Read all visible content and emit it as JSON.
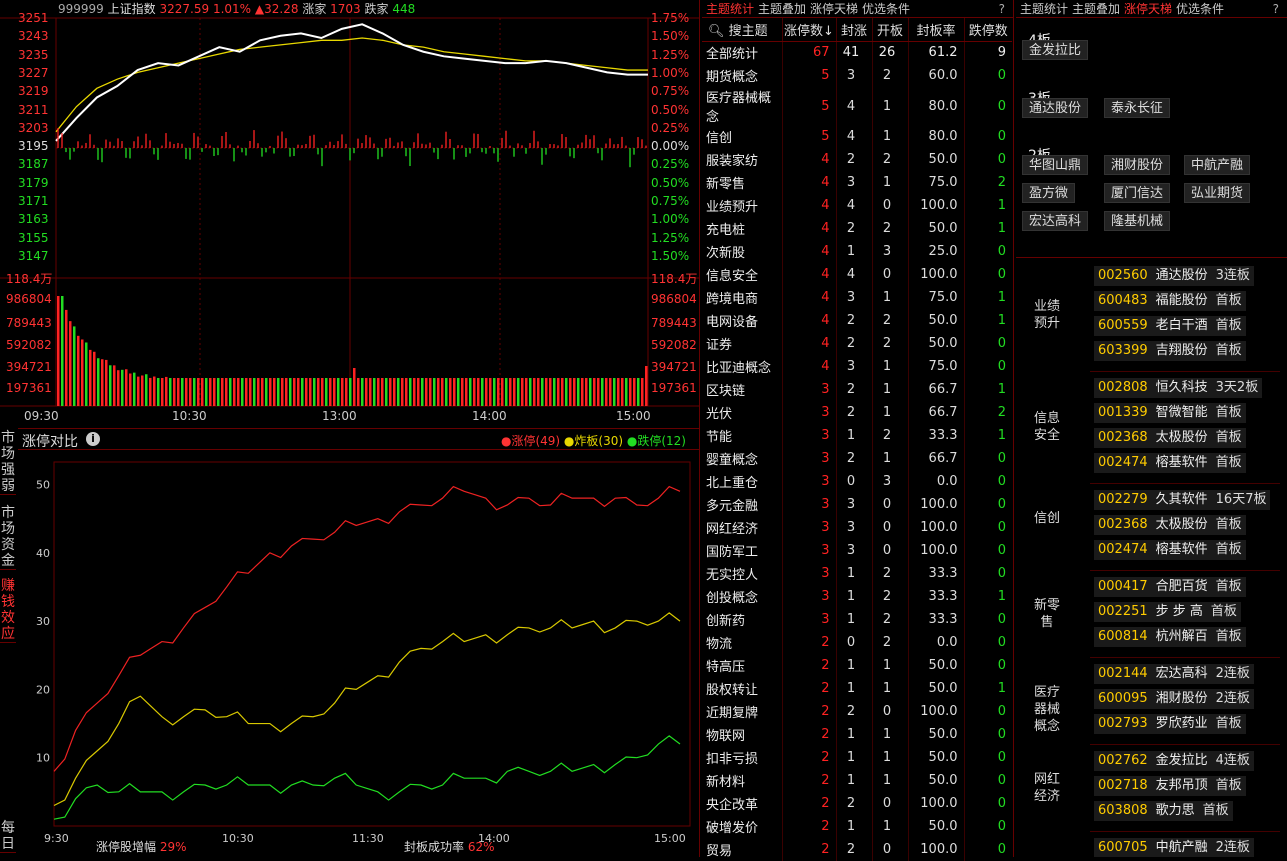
{
  "index": {
    "code": "999999",
    "name": "上证指数",
    "price": "3227.59",
    "pct": "1.01%",
    "change": "▲32.28",
    "up_label": "涨家",
    "up_count": "1703",
    "down_label": "跌家",
    "down_count": "448"
  },
  "price_axis": {
    "left": [
      "3251",
      "3243",
      "3235",
      "3227",
      "3219",
      "3211",
      "3203",
      "3195",
      "3187",
      "3179",
      "3171",
      "3163",
      "3155",
      "3147"
    ],
    "right": [
      "1.75%",
      "1.50%",
      "1.25%",
      "1.00%",
      "0.75%",
      "0.50%",
      "0.25%",
      "0.00%",
      "0.25%",
      "0.50%",
      "0.75%",
      "1.00%",
      "1.25%",
      "1.50%"
    ]
  },
  "volume_axis": [
    "118.4万",
    "986804",
    "789443",
    "592082",
    "394721",
    "197361"
  ],
  "time_axis": [
    "09:30",
    "10:30",
    "13:00",
    "14:00",
    "15:00"
  ],
  "compare": {
    "title": "涨停对比",
    "legend": [
      {
        "label": "涨停(49)",
        "color": "#ff3333"
      },
      {
        "label": "炸板(30)",
        "color": "#e8d800"
      },
      {
        "label": "跌停(12)",
        "color": "#22dd22"
      }
    ],
    "footer_left_label": "涨停股增幅",
    "footer_left_value": "29%",
    "footer_right_label": "封板成功率",
    "footer_right_value": "62%",
    "y_ticks": [
      "50",
      "40",
      "30",
      "20",
      "10"
    ],
    "x_ticks": [
      "9:30",
      "10:30",
      "11:30",
      "14:00",
      "15:00"
    ]
  },
  "side_tabs": [
    {
      "label": "市场强弱"
    },
    {
      "label": "市场资金"
    },
    {
      "label": "赚钱效应",
      "active": true
    },
    {
      "label": "每日"
    }
  ],
  "mid_tabs": [
    "主题统计",
    "主题叠加",
    "涨停天梯",
    "优选条件"
  ],
  "mid_help": "?",
  "table": {
    "headers": [
      "搜主题",
      "涨停数↓",
      "封涨",
      "开板",
      "封板率",
      "跌停数"
    ],
    "rows": [
      [
        "全部统计",
        "67",
        "41",
        "26",
        "61.2",
        "9"
      ],
      [
        "期货概念",
        "5",
        "3",
        "2",
        "60.0",
        "0"
      ],
      [
        "医疗器械概念",
        "5",
        "4",
        "1",
        "80.0",
        "0"
      ],
      [
        "信创",
        "5",
        "4",
        "1",
        "80.0",
        "0"
      ],
      [
        "服装家纺",
        "4",
        "2",
        "2",
        "50.0",
        "0"
      ],
      [
        "新零售",
        "4",
        "3",
        "1",
        "75.0",
        "2"
      ],
      [
        "业绩预升",
        "4",
        "4",
        "0",
        "100.0",
        "1"
      ],
      [
        "充电桩",
        "4",
        "2",
        "2",
        "50.0",
        "1"
      ],
      [
        "次新股",
        "4",
        "1",
        "3",
        "25.0",
        "0"
      ],
      [
        "信息安全",
        "4",
        "4",
        "0",
        "100.0",
        "0"
      ],
      [
        "跨境电商",
        "4",
        "3",
        "1",
        "75.0",
        "1"
      ],
      [
        "电网设备",
        "4",
        "2",
        "2",
        "50.0",
        "1"
      ],
      [
        "证券",
        "4",
        "2",
        "2",
        "50.0",
        "0"
      ],
      [
        "比亚迪概念",
        "4",
        "3",
        "1",
        "75.0",
        "0"
      ],
      [
        "区块链",
        "3",
        "2",
        "1",
        "66.7",
        "1"
      ],
      [
        "光伏",
        "3",
        "2",
        "1",
        "66.7",
        "2"
      ],
      [
        "节能",
        "3",
        "1",
        "2",
        "33.3",
        "1"
      ],
      [
        "婴童概念",
        "3",
        "2",
        "1",
        "66.7",
        "0"
      ],
      [
        "北上重仓",
        "3",
        "0",
        "3",
        "0.0",
        "0"
      ],
      [
        "多元金融",
        "3",
        "3",
        "0",
        "100.0",
        "0"
      ],
      [
        "网红经济",
        "3",
        "3",
        "0",
        "100.0",
        "0"
      ],
      [
        "国防军工",
        "3",
        "3",
        "0",
        "100.0",
        "0"
      ],
      [
        "无实控人",
        "3",
        "1",
        "2",
        "33.3",
        "0"
      ],
      [
        "创投概念",
        "3",
        "1",
        "2",
        "33.3",
        "1"
      ],
      [
        "创新药",
        "3",
        "1",
        "2",
        "33.3",
        "0"
      ],
      [
        "物流",
        "2",
        "0",
        "2",
        "0.0",
        "0"
      ],
      [
        "特高压",
        "2",
        "1",
        "1",
        "50.0",
        "0"
      ],
      [
        "股权转让",
        "2",
        "1",
        "1",
        "50.0",
        "1"
      ],
      [
        "近期复牌",
        "2",
        "2",
        "0",
        "100.0",
        "0"
      ],
      [
        "物联网",
        "2",
        "1",
        "1",
        "50.0",
        "0"
      ],
      [
        "扣非亏损",
        "2",
        "1",
        "1",
        "50.0",
        "0"
      ],
      [
        "新材料",
        "2",
        "1",
        "1",
        "50.0",
        "0"
      ],
      [
        "央企改革",
        "2",
        "2",
        "0",
        "100.0",
        "0"
      ],
      [
        "破增发价",
        "2",
        "1",
        "1",
        "50.0",
        "0"
      ],
      [
        "贸易",
        "2",
        "2",
        "0",
        "100.0",
        "0"
      ]
    ]
  },
  "right_tabs": [
    "主题统计",
    "主题叠加",
    "涨停天梯",
    "优选条件"
  ],
  "ladder": [
    {
      "level": "4板",
      "stocks": [
        "金发拉比"
      ]
    },
    {
      "level": "3板",
      "stocks": [
        "通达股份",
        "泰永长征"
      ]
    },
    {
      "level": "2板",
      "stocks": [
        "华图山鼎",
        "湘财股份",
        "中航产融",
        "盈方微",
        "厦门信达",
        "弘业期货",
        "宏达高科",
        "隆基机械"
      ]
    }
  ],
  "groups": [
    {
      "label": "业绩预升",
      "items": [
        [
          "002560",
          "通达股份",
          "3连板"
        ],
        [
          "600483",
          "福能股份",
          "首板"
        ],
        [
          "600559",
          "老白干酒",
          "首板"
        ],
        [
          "603399",
          "吉翔股份",
          "首板"
        ]
      ]
    },
    {
      "label": "信息安全",
      "items": [
        [
          "002808",
          "恒久科技",
          "3天2板"
        ],
        [
          "001339",
          "智微智能",
          "首板"
        ],
        [
          "002368",
          "太极股份",
          "首板"
        ],
        [
          "002474",
          "榕基软件",
          "首板"
        ]
      ]
    },
    {
      "label": "信创",
      "items": [
        [
          "002279",
          "久其软件",
          "16天7板"
        ],
        [
          "002368",
          "太极股份",
          "首板"
        ],
        [
          "002474",
          "榕基软件",
          "首板"
        ]
      ]
    },
    {
      "label": "新零售",
      "items": [
        [
          "000417",
          "合肥百货",
          "首板"
        ],
        [
          "002251",
          "步 步 高",
          "首板"
        ],
        [
          "600814",
          "杭州解百",
          "首板"
        ]
      ]
    },
    {
      "label": "医疗器械概念",
      "items": [
        [
          "002144",
          "宏达高科",
          "2连板"
        ],
        [
          "600095",
          "湘财股份",
          "2连板"
        ],
        [
          "002793",
          "罗欣药业",
          "首板"
        ]
      ]
    },
    {
      "label": "网红经济",
      "items": [
        [
          "002762",
          "金发拉比",
          "4连板"
        ],
        [
          "002718",
          "友邦吊顶",
          "首板"
        ],
        [
          "603808",
          "歌力思",
          "首板"
        ]
      ]
    },
    {
      "label": "",
      "items": [
        [
          "600705",
          "中航产融",
          "2连板"
        ]
      ]
    }
  ],
  "colors": {
    "up": "#ff2222",
    "down": "#22dd22",
    "yellow": "#e8d800",
    "white": "#ffffff",
    "grid": "#660000"
  },
  "series": {
    "index_line": [
      3199,
      3209,
      3218,
      3223,
      3230,
      3233,
      3232,
      3236,
      3240,
      3238,
      3243,
      3245,
      3246,
      3244,
      3248,
      3250,
      3246,
      3241,
      3238,
      3236,
      3235,
      3234,
      3233,
      3233,
      3234,
      3233,
      3231,
      3229,
      3228,
      3228
    ],
    "avg_line": [
      3203,
      3214,
      3222,
      3226,
      3229,
      3231,
      3233,
      3235,
      3237,
      3239,
      3240,
      3241,
      3242,
      3243,
      3243,
      3244,
      3243,
      3241,
      3240,
      3238,
      3237,
      3236,
      3235,
      3234,
      3234,
      3233,
      3232,
      3231,
      3230,
      3230
    ],
    "zt": [
      8,
      14,
      18,
      22,
      25,
      27,
      29,
      32,
      35,
      37,
      40,
      41,
      42,
      43,
      44,
      45,
      46,
      47,
      48,
      49,
      48,
      47,
      48,
      47,
      48,
      48,
      48,
      47,
      48,
      49
    ],
    "zb": [
      3,
      7,
      11,
      15,
      19,
      16,
      16,
      17,
      16,
      15,
      15,
      15,
      16,
      18,
      20,
      22,
      24,
      26,
      27,
      27,
      28,
      28,
      29,
      29,
      29,
      30,
      29,
      30,
      30,
      30
    ],
    "dt": [
      1,
      4,
      6,
      5,
      5,
      5,
      5,
      6,
      6,
      6,
      6,
      6,
      6,
      7,
      6,
      5,
      5,
      6,
      6,
      7,
      7,
      8,
      8,
      8,
      8,
      9,
      9,
      10,
      12,
      12
    ]
  }
}
